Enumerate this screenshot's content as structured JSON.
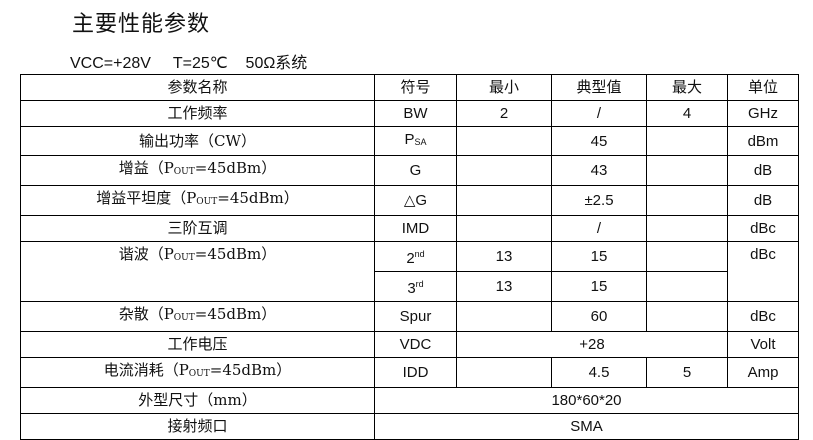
{
  "title": "主要性能参数",
  "conditions": "VCC=+28V     T=25℃    50Ω系统",
  "headers": [
    "参数名称",
    "符号",
    "最小",
    "典型值",
    "最大",
    "单位"
  ],
  "rows": {
    "bw": {
      "name": "工作频率",
      "sym": "BW",
      "min": "2",
      "typ": "/",
      "max": "4",
      "unit": "GHz"
    },
    "psat": {
      "name": "输出功率（CW）",
      "sym": "P",
      "sym_sub": "SA",
      "typ": "45",
      "unit": "dBm"
    },
    "gain": {
      "name_pre": "增益（P",
      "name_sub": "OUT",
      "name_post": "=45dBm）",
      "sym": "G",
      "typ": "43",
      "unit": "dB"
    },
    "flat": {
      "name_pre": "增益平坦度（P",
      "name_sub": "OUT",
      "name_post": "=45dBm）",
      "sym": "△G",
      "typ": "±2.5",
      "unit": "dB"
    },
    "imd": {
      "name": "三阶互调",
      "sym": "IMD",
      "typ": "/",
      "unit": "dBc"
    },
    "harm": {
      "name_pre": "谐波（P",
      "name_sub": "OUT",
      "name_post": "=45dBm）",
      "sym2": "2",
      "sym2_sup": "nd",
      "min2": "13",
      "typ2": "15",
      "sym3": "3",
      "sym3_sup": "rd",
      "min3": "13",
      "typ3": "15",
      "unit": "dBc"
    },
    "spur": {
      "name_pre": "杂散（P",
      "name_sub": "OUT",
      "name_post": "=45dBm）",
      "sym": "Spur",
      "typ": "60",
      "unit": "dBc"
    },
    "vdc": {
      "name": "工作电压",
      "sym": "VDC",
      "val": "+28",
      "unit": "Volt"
    },
    "idd": {
      "name_pre": "电流消耗（P",
      "name_sub": "OUT",
      "name_post": "=45dBm）",
      "sym": "IDD",
      "typ": "4.5",
      "max": "5",
      "unit": "Amp"
    },
    "size": {
      "name": "外型尺寸（mm）",
      "val": "180*60*20"
    },
    "conn": {
      "name": "接射频口",
      "val": "SMA"
    }
  }
}
